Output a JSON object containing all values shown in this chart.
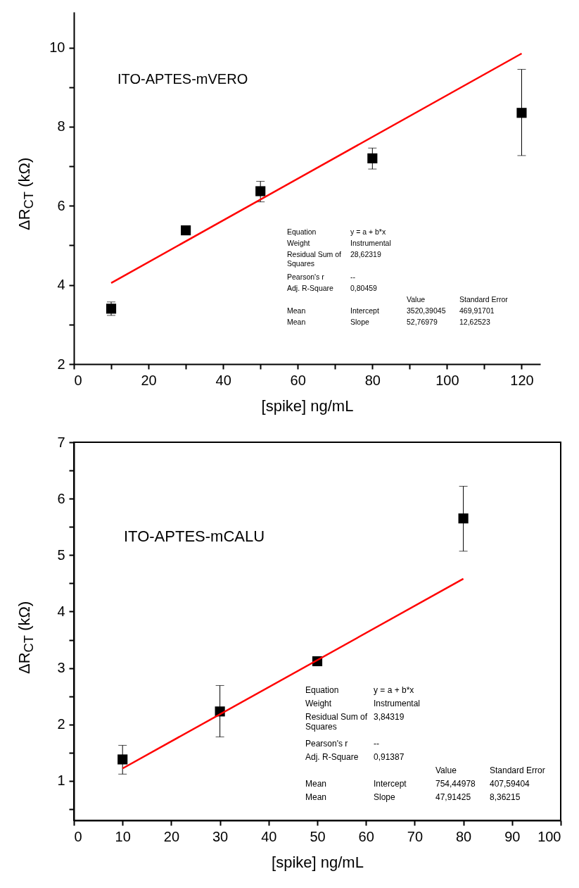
{
  "chart_data": [
    {
      "type": "scatter",
      "xlabel": "[spike] ng/mL",
      "ylabel": "ΔR$_{CT}$ (kΩ)",
      "xlim": [
        0,
        125
      ],
      "ylim": [
        2,
        10.9
      ],
      "xticks": [
        0,
        {
          "value": 10,
          "label": null
        },
        20,
        {
          "value": 30,
          "label": null
        },
        40,
        {
          "value": 50,
          "label": null
        },
        60,
        {
          "value": 70,
          "label": null
        },
        80,
        {
          "value": 90,
          "label": null
        },
        100,
        {
          "value": 110,
          "label": null
        },
        120
      ],
      "yticks": [
        2,
        {
          "value": 3,
          "label": null
        },
        4,
        {
          "value": 5,
          "label": null
        },
        6,
        {
          "value": 7,
          "label": null
        },
        8,
        {
          "value": 9,
          "label": null
        },
        10
      ],
      "x": [
        10,
        30,
        50,
        80,
        120
      ],
      "series": [
        {
          "marker": "square",
          "color": "#000000",
          "values": [
            3.4,
            5.38,
            6.37,
            7.2,
            8.35
          ],
          "errors": [
            0.17,
            null,
            [
              6.1,
              6.62
            ],
            [
              6.93,
              7.46
            ],
            [
              7.27,
              9.45
            ]
          ]
        },
        {
          "type": "line",
          "line_style": "solid",
          "color": "#ff0000",
          "x": [
            10,
            120
          ],
          "values": [
            4.05,
            9.85
          ]
        }
      ],
      "annotations": [
        "ITO-APTES-mVERO",
        "Equation",
        "y = a + b*x",
        "Weight",
        "Instrumental",
        "Residual Sum of Squares",
        "28,62319",
        "Pearson's r",
        "--",
        "Adj. R-Square",
        "0,80459",
        "Value",
        "Standard Error",
        "Mean",
        "Intercept",
        "3520,39045",
        "469,91701",
        "Mean",
        "Slope",
        "52,76979",
        "12,62523"
      ]
    },
    {
      "type": "scatter",
      "xlabel": "[spike] ng/mL",
      "ylabel": "ΔR$_{CT}$ (kΩ)",
      "xlim": [
        0,
        100
      ],
      "ylim": [
        0.3,
        7
      ],
      "xticks": [
        0,
        10,
        20,
        30,
        40,
        50,
        60,
        70,
        80,
        90,
        100
      ],
      "yticks": [
        {
          "value": 0.5,
          "label": null
        },
        1,
        {
          "value": 1.5,
          "label": null
        },
        2,
        {
          "value": 2.5,
          "label": null
        },
        3,
        {
          "value": 3.5,
          "label": null
        },
        4,
        {
          "value": 4.5,
          "label": null
        },
        5,
        {
          "value": 5.5,
          "label": null
        },
        6,
        {
          "value": 6.5,
          "label": null
        },
        7
      ],
      "x": [
        10,
        30,
        50,
        80
      ],
      "series": [
        {
          "marker": "square",
          "color": "#000000",
          "values": [
            1.38,
            2.23,
            3.12,
            5.65
          ],
          "errors": [
            [
              1.12,
              1.63
            ],
            [
              1.78,
              2.69
            ],
            null,
            [
              5.07,
              6.22
            ]
          ]
        },
        {
          "type": "line",
          "line_style": "solid",
          "color": "#ff0000",
          "x": [
            10,
            80
          ],
          "values": [
            1.22,
            4.58
          ]
        }
      ],
      "annotations": [
        "ITO-APTES-mCALU",
        "Equation",
        "y = a + b*x",
        "Weight",
        "Instrumental",
        "Residual Sum of Squares",
        "3,84319",
        "Pearson's r",
        "--",
        "Adj. R-Square",
        "0,91387",
        "Value",
        "Standard Error",
        "Mean",
        "Intercept",
        "754,44978",
        "407,59404",
        "Mean",
        "Slope",
        "47,91425",
        "8,36215"
      ]
    }
  ]
}
